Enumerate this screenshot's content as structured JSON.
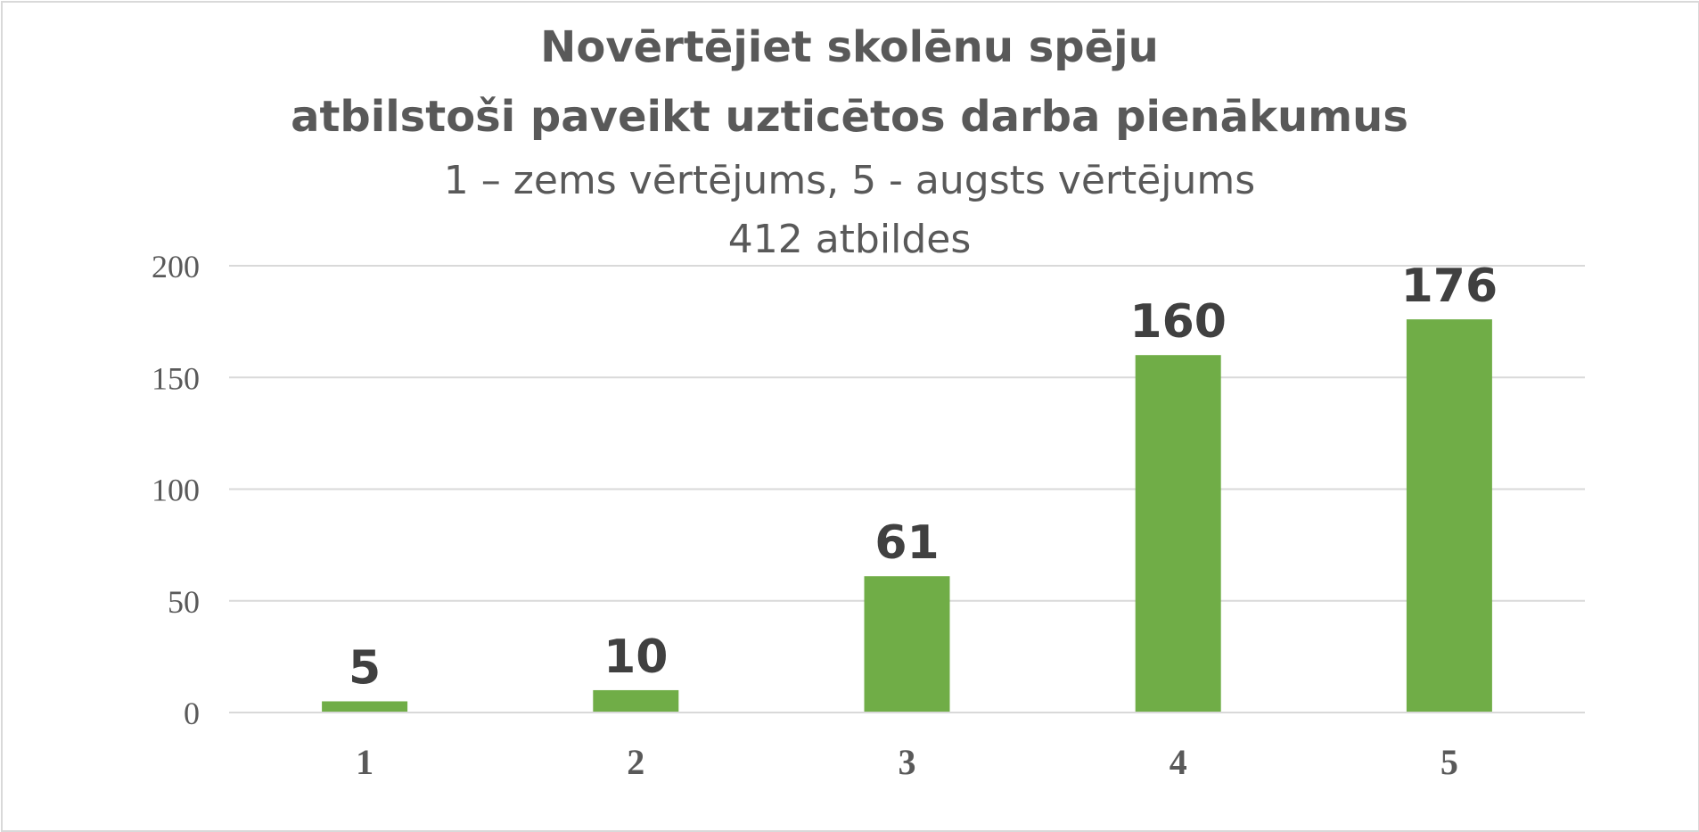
{
  "chart_data": {
    "type": "bar",
    "title_lines": [
      "Novērtējiet skolēnu spēju",
      "atbilstoši paveikt uzticētos darba pienākumus"
    ],
    "subtitle_lines": [
      "1 – zems vērtējums, 5 - augsts vērtējums",
      "412 atbildes"
    ],
    "categories": [
      "1",
      "2",
      "3",
      "4",
      "5"
    ],
    "values": [
      5,
      10,
      61,
      160,
      176
    ],
    "ylim": [
      0,
      200
    ],
    "yticks": [
      0,
      50,
      100,
      150,
      200
    ],
    "grid": true,
    "legend": "none",
    "bar_color": "#70ad47",
    "grid_color": "#d9d9d9"
  }
}
